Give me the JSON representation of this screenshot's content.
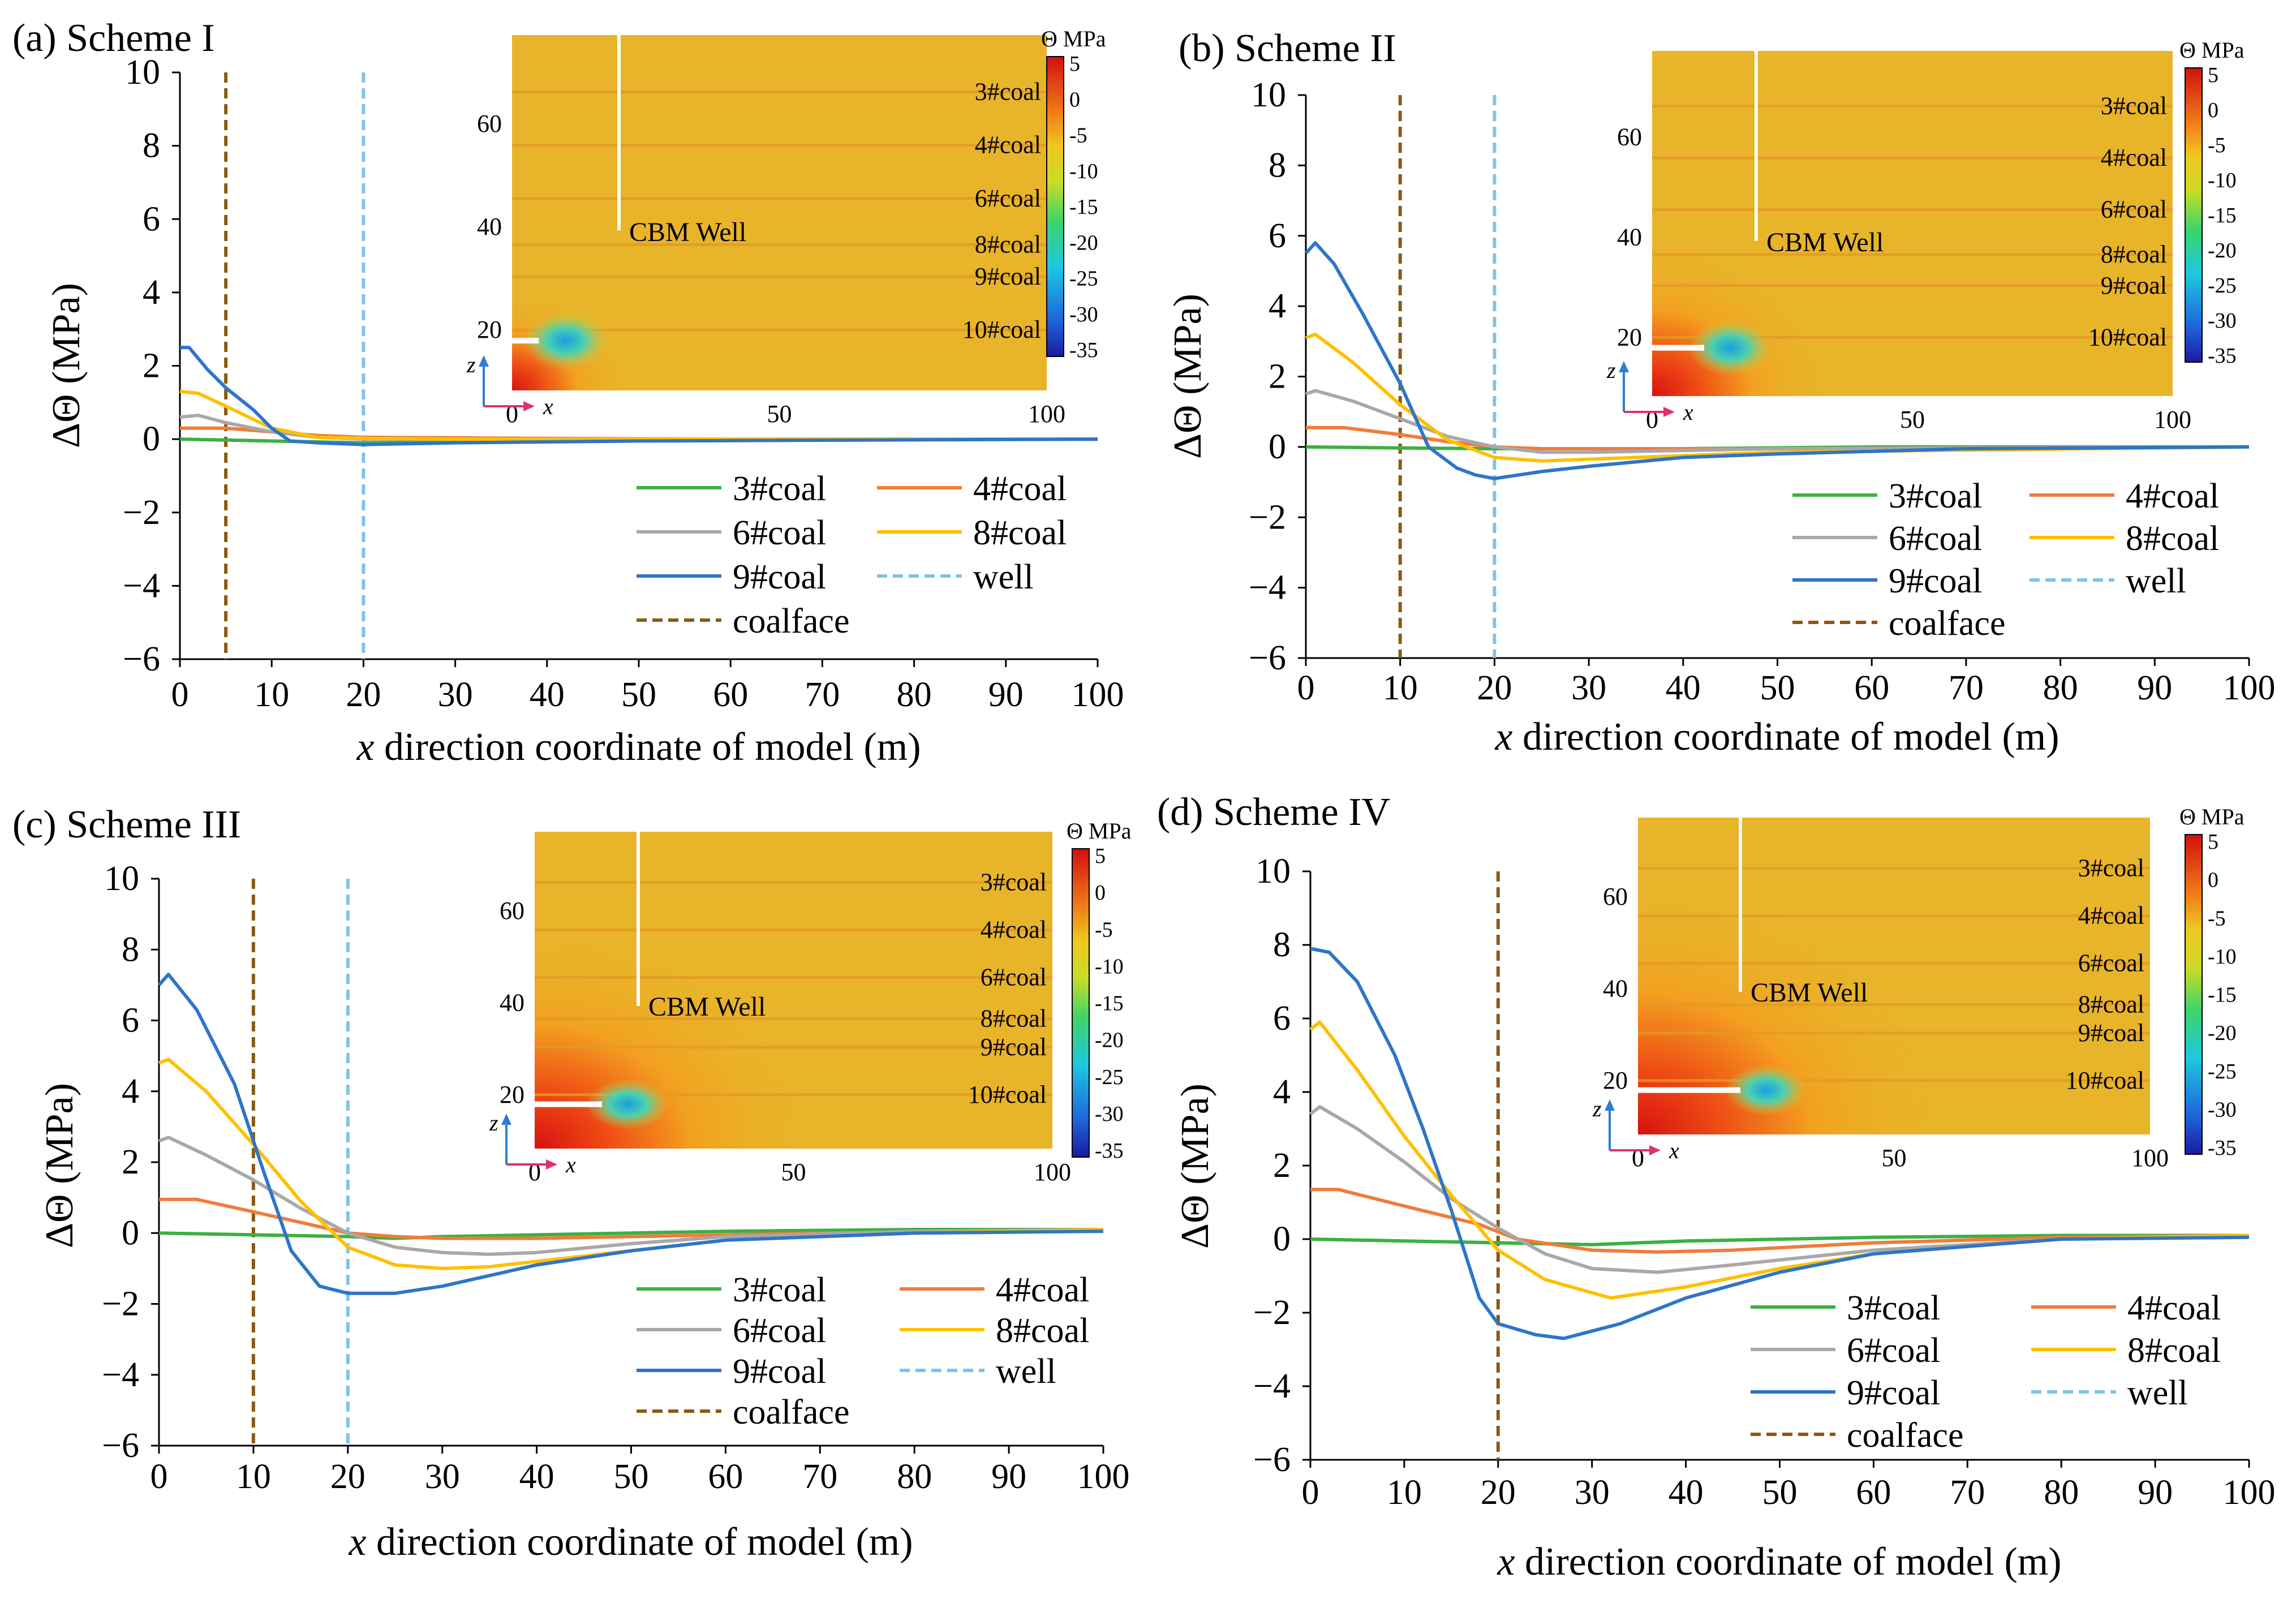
{
  "figure": {
    "colors": {
      "coal3": "#3cb043",
      "coal4": "#f07c3a",
      "coal6": "#a8a8a8",
      "coal8": "#ffc000",
      "coal9": "#2e75c8",
      "well": "#7ec3ea",
      "coalface": "#8b5a10"
    },
    "legend_labels": {
      "coal3": "3#coal",
      "coal4": "4#coal",
      "coal6": "6#coal",
      "coal8": "8#coal",
      "coal9": "9#coal",
      "well": "well",
      "coalface": "coalface"
    },
    "inset": {
      "cbm_label": "CBM Well",
      "colorbar_title": "Θ MPa",
      "colorbar_ticks": [
        "5",
        "0",
        "-5",
        "-10",
        "-15",
        "-20",
        "-25",
        "-30",
        "-35"
      ],
      "x_ticks": [
        "0",
        "50",
        "100"
      ],
      "y_ticks": [
        "20",
        "40",
        "60"
      ],
      "x_axis_label": "x",
      "z_axis_label": "z",
      "coal_labels": [
        "3#coal",
        "4#coal",
        "6#coal",
        "8#coal",
        "9#coal",
        "10#coal"
      ]
    }
  },
  "chart_data": [
    {
      "type": "line",
      "panel_label": "(a) Scheme I",
      "xlabel": "x direction coordinate of model (m)",
      "ylabel": "ΔΘ (MPa)",
      "xlim": [
        0,
        100
      ],
      "ylim": [
        -6,
        10
      ],
      "xticks": [
        0,
        10,
        20,
        30,
        40,
        50,
        60,
        70,
        80,
        90,
        100
      ],
      "yticks": [
        10,
        8,
        6,
        4,
        2,
        0,
        -2,
        -4,
        -6
      ],
      "well_x": 20,
      "coalface_x": 5,
      "series": [
        {
          "name": "3#coal",
          "key": "coal3",
          "x": [
            0,
            10,
            20,
            40,
            60,
            80,
            100
          ],
          "y": [
            0,
            -0.05,
            -0.1,
            -0.05,
            0,
            0,
            0
          ]
        },
        {
          "name": "4#coal",
          "key": "coal4",
          "x": [
            0,
            5,
            10,
            15,
            20,
            40,
            60,
            100
          ],
          "y": [
            0.3,
            0.3,
            0.2,
            0.1,
            0.05,
            0.02,
            0,
            0
          ]
        },
        {
          "name": "6#coal",
          "key": "coal6",
          "x": [
            0,
            2,
            5,
            10,
            15,
            20,
            30,
            60,
            100
          ],
          "y": [
            0.6,
            0.65,
            0.45,
            0.2,
            0.05,
            0,
            0,
            0,
            0
          ]
        },
        {
          "name": "8#coal",
          "key": "coal8",
          "x": [
            0,
            2,
            5,
            10,
            15,
            20,
            30,
            60,
            100
          ],
          "y": [
            1.3,
            1.25,
            0.9,
            0.3,
            0.05,
            0.02,
            0,
            0,
            0
          ]
        },
        {
          "name": "9#coal",
          "key": "coal9",
          "x": [
            0,
            1,
            3,
            5,
            8,
            10,
            12,
            15,
            20,
            30,
            50,
            100
          ],
          "y": [
            2.5,
            2.5,
            1.9,
            1.4,
            0.8,
            0.3,
            -0.05,
            -0.1,
            -0.15,
            -0.1,
            -0.05,
            0
          ]
        }
      ]
    },
    {
      "type": "line",
      "panel_label": "(b) Scheme II",
      "xlabel": "x direction coordinate of model (m)",
      "ylabel": "ΔΘ (MPa)",
      "xlim": [
        0,
        100
      ],
      "ylim": [
        -6,
        10
      ],
      "xticks": [
        0,
        10,
        20,
        30,
        40,
        50,
        60,
        70,
        80,
        90,
        100
      ],
      "yticks": [
        10,
        8,
        6,
        4,
        2,
        0,
        -2,
        -4,
        -6
      ],
      "well_x": 20,
      "coalface_x": 10,
      "series": [
        {
          "name": "3#coal",
          "key": "coal3",
          "x": [
            0,
            10,
            20,
            40,
            60,
            100
          ],
          "y": [
            0,
            -0.03,
            -0.05,
            -0.05,
            0,
            0
          ]
        },
        {
          "name": "4#coal",
          "key": "coal4",
          "x": [
            0,
            4,
            10,
            15,
            20,
            25,
            30,
            50,
            100
          ],
          "y": [
            0.55,
            0.55,
            0.35,
            0.15,
            0,
            -0.05,
            -0.05,
            -0.05,
            0
          ]
        },
        {
          "name": "6#coal",
          "key": "coal6",
          "x": [
            0,
            1,
            5,
            10,
            15,
            20,
            25,
            30,
            50,
            100
          ],
          "y": [
            1.5,
            1.6,
            1.3,
            0.8,
            0.3,
            0,
            -0.15,
            -0.15,
            -0.05,
            0
          ]
        },
        {
          "name": "8#coal",
          "key": "coal8",
          "x": [
            0,
            1,
            5,
            10,
            15,
            20,
            25,
            30,
            50,
            100
          ],
          "y": [
            3.1,
            3.2,
            2.4,
            1.2,
            0.2,
            -0.3,
            -0.4,
            -0.35,
            -0.15,
            0
          ]
        },
        {
          "name": "9#coal",
          "key": "coal9",
          "x": [
            0,
            1,
            3,
            6,
            10,
            13,
            16,
            18,
            20,
            25,
            30,
            40,
            50,
            70,
            100
          ],
          "y": [
            5.5,
            5.8,
            5.2,
            3.8,
            1.8,
            0,
            -0.6,
            -0.8,
            -0.9,
            -0.7,
            -0.55,
            -0.3,
            -0.2,
            -0.05,
            0
          ]
        }
      ]
    },
    {
      "type": "line",
      "panel_label": "(c) Scheme III",
      "xlabel": "x direction coordinate of model (m)",
      "ylabel": "ΔΘ (MPa)",
      "xlim": [
        0,
        100
      ],
      "ylim": [
        -6,
        10
      ],
      "xticks": [
        0,
        10,
        20,
        30,
        40,
        50,
        60,
        70,
        80,
        90,
        100
      ],
      "yticks": [
        10,
        8,
        6,
        4,
        2,
        0,
        -2,
        -4,
        -6
      ],
      "well_x": 20,
      "coalface_x": 10,
      "series": [
        {
          "name": "3#coal",
          "key": "coal3",
          "x": [
            0,
            10,
            20,
            25,
            30,
            40,
            50,
            60,
            80,
            100
          ],
          "y": [
            0,
            -0.05,
            -0.1,
            -0.15,
            -0.1,
            -0.05,
            0,
            0.05,
            0.1,
            0.1
          ]
        },
        {
          "name": "4#coal",
          "key": "coal4",
          "x": [
            0,
            4,
            10,
            15,
            20,
            25,
            30,
            40,
            50,
            70,
            100
          ],
          "y": [
            0.95,
            0.95,
            0.6,
            0.3,
            0,
            -0.1,
            -0.15,
            -0.15,
            -0.1,
            0,
            0.05
          ]
        },
        {
          "name": "6#coal",
          "key": "coal6",
          "x": [
            0,
            1,
            5,
            10,
            15,
            20,
            25,
            30,
            35,
            40,
            50,
            60,
            80,
            100
          ],
          "y": [
            2.6,
            2.7,
            2.2,
            1.5,
            0.7,
            0,
            -0.4,
            -0.55,
            -0.6,
            -0.55,
            -0.3,
            -0.1,
            0.05,
            0.1
          ]
        },
        {
          "name": "8#coal",
          "key": "coal8",
          "x": [
            0,
            1,
            5,
            10,
            15,
            20,
            25,
            30,
            35,
            40,
            50,
            60,
            80,
            100
          ],
          "y": [
            4.8,
            4.9,
            4.0,
            2.5,
            0.9,
            -0.4,
            -0.9,
            -1.0,
            -0.95,
            -0.8,
            -0.5,
            -0.2,
            0,
            0.1
          ]
        },
        {
          "name": "9#coal",
          "key": "coal9",
          "x": [
            0,
            1,
            4,
            8,
            11,
            14,
            17,
            20,
            25,
            30,
            40,
            50,
            60,
            80,
            100
          ],
          "y": [
            7.0,
            7.3,
            6.3,
            4.2,
            1.8,
            -0.5,
            -1.5,
            -1.7,
            -1.7,
            -1.5,
            -0.9,
            -0.5,
            -0.2,
            0,
            0.05
          ]
        }
      ]
    },
    {
      "type": "line",
      "panel_label": "(d) Scheme IV",
      "xlabel": "x direction coordinate of model (m)",
      "ylabel": "ΔΘ (MPa)",
      "xlim": [
        0,
        100
      ],
      "ylim": [
        -6,
        10
      ],
      "xticks": [
        0,
        10,
        20,
        30,
        40,
        50,
        60,
        70,
        80,
        90,
        100
      ],
      "yticks": [
        10,
        8,
        6,
        4,
        2,
        0,
        -2,
        -4,
        -6
      ],
      "well_x": null,
      "coalface_x": 20,
      "series": [
        {
          "name": "3#coal",
          "key": "coal3",
          "x": [
            0,
            10,
            20,
            30,
            40,
            60,
            80,
            100
          ],
          "y": [
            0,
            -0.05,
            -0.1,
            -0.15,
            -0.05,
            0.05,
            0.1,
            0.1
          ]
        },
        {
          "name": "4#coal",
          "key": "coal4",
          "x": [
            0,
            3,
            10,
            18,
            22,
            30,
            37,
            45,
            60,
            80,
            100
          ],
          "y": [
            1.35,
            1.35,
            0.9,
            0.4,
            0,
            -0.3,
            -0.35,
            -0.3,
            -0.1,
            0.05,
            0.1
          ]
        },
        {
          "name": "6#coal",
          "key": "coal6",
          "x": [
            0,
            1,
            5,
            10,
            15,
            20,
            25,
            30,
            37,
            45,
            60,
            80,
            100
          ],
          "y": [
            3.4,
            3.6,
            3.0,
            2.1,
            1.1,
            0.3,
            -0.4,
            -0.8,
            -0.9,
            -0.7,
            -0.3,
            0,
            0.1
          ]
        },
        {
          "name": "8#coal",
          "key": "coal8",
          "x": [
            0,
            1,
            5,
            10,
            15,
            20,
            25,
            32,
            40,
            50,
            60,
            80,
            100
          ],
          "y": [
            5.7,
            5.9,
            4.6,
            2.8,
            1.2,
            -0.3,
            -1.1,
            -1.6,
            -1.3,
            -0.8,
            -0.4,
            0,
            0.1
          ]
        },
        {
          "name": "9#coal",
          "key": "coal9",
          "x": [
            0,
            2,
            5,
            9,
            12,
            15,
            18,
            20,
            24,
            27,
            33,
            40,
            50,
            60,
            80,
            100
          ],
          "y": [
            7.9,
            7.8,
            7.0,
            5.0,
            3.0,
            0.8,
            -1.6,
            -2.3,
            -2.6,
            -2.7,
            -2.3,
            -1.6,
            -0.9,
            -0.4,
            0,
            0.05
          ]
        }
      ]
    }
  ]
}
